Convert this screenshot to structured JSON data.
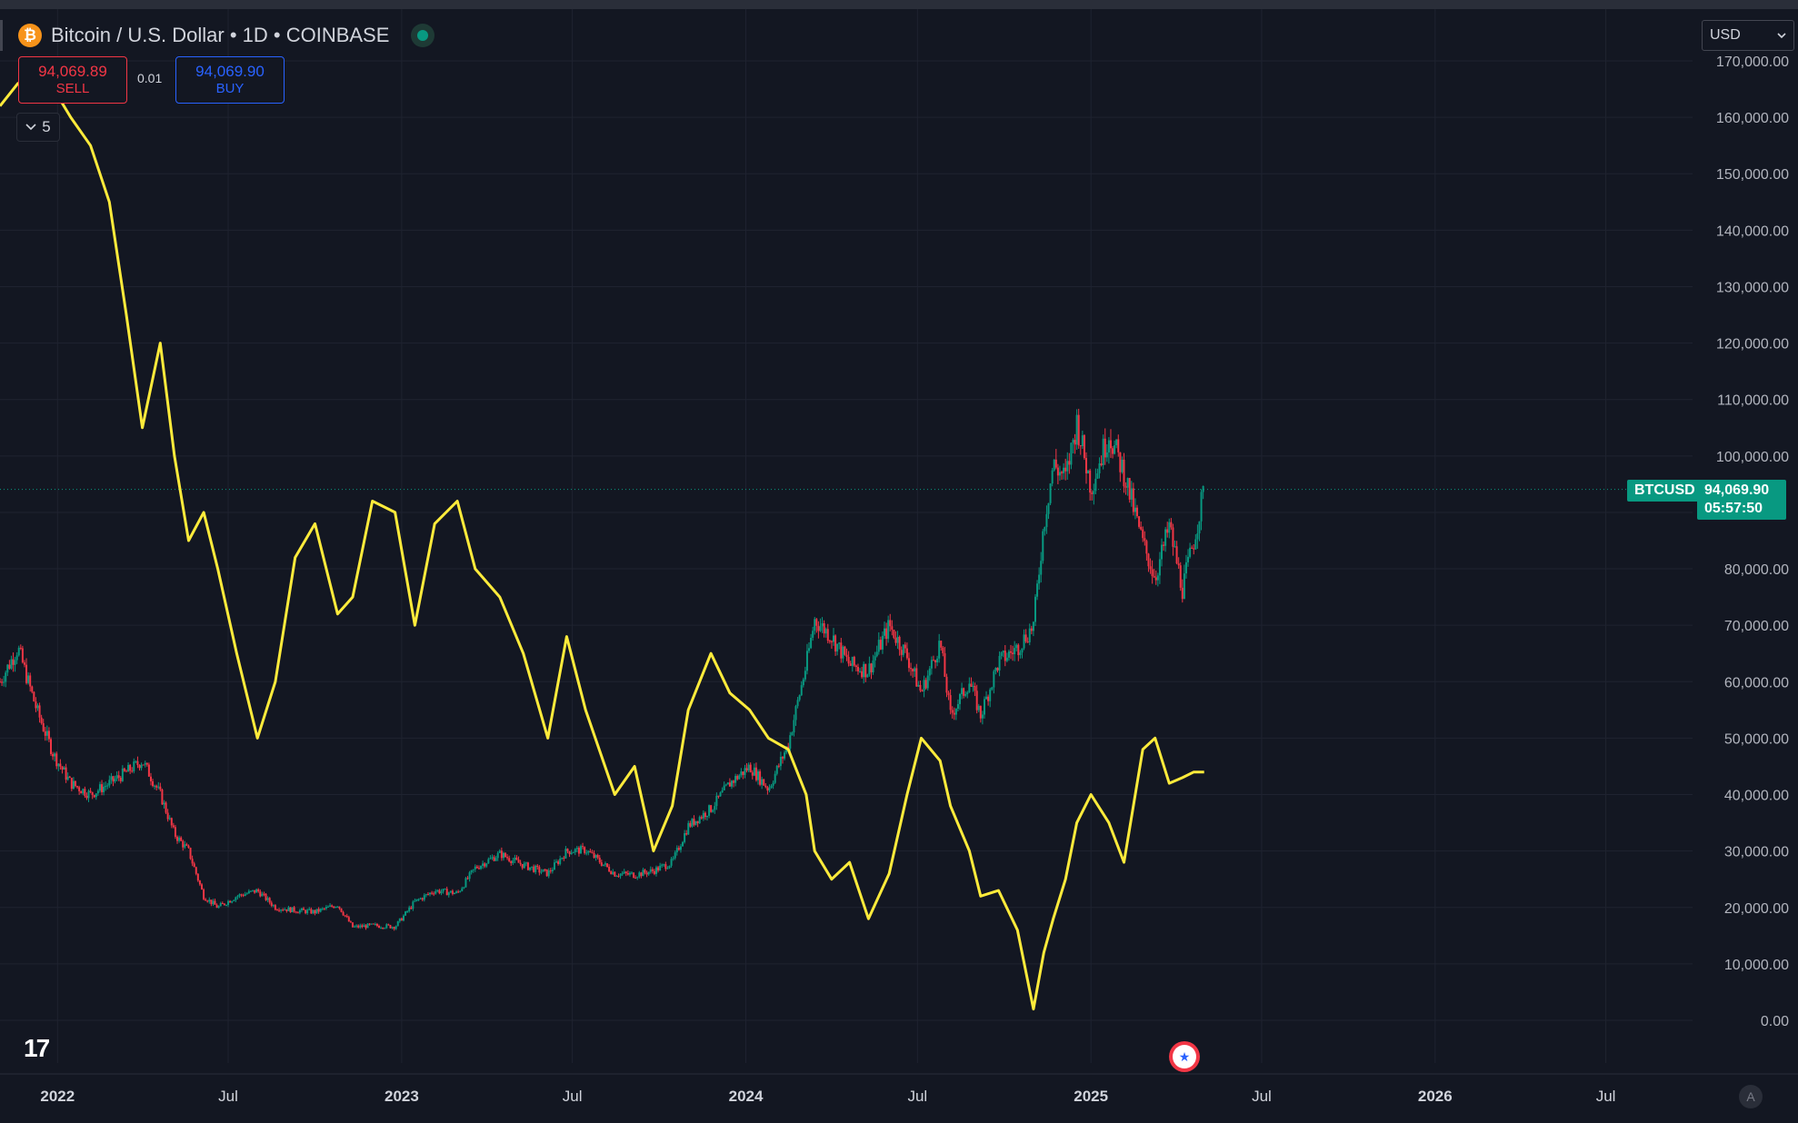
{
  "header": {
    "symbol_title": "Bitcoin / U.S. Dollar • 1D • COINBASE",
    "btc_glyph": "₿"
  },
  "trade": {
    "sell_price": "94,069.89",
    "sell_label": "SELL",
    "buy_price": "94,069.90",
    "buy_label": "BUY",
    "spread": "0.01"
  },
  "indicator_toggle": {
    "count": "5",
    "icon": "chevron-down-icon"
  },
  "currency_select": {
    "value": "USD",
    "icon": "chevron-down-icon"
  },
  "last_price": {
    "symbol": "BTCUSD",
    "price": "94,069.90",
    "countdown": "05:57:50"
  },
  "colors": {
    "background": "#131722",
    "up": "#089981",
    "down": "#f23645",
    "overlay": "#ffeb3b",
    "grid": "#1f2330"
  },
  "chart_data": {
    "type": "line",
    "ylim": [
      0,
      170000
    ],
    "y_ticks": [
      0,
      10000,
      20000,
      30000,
      40000,
      50000,
      60000,
      70000,
      80000,
      90000,
      100000,
      110000,
      120000,
      130000,
      140000,
      150000,
      160000,
      170000
    ],
    "y_tick_labels": [
      "0.00",
      "10,000.00",
      "20,000.00",
      "30,000.00",
      "40,000.00",
      "50,000.00",
      "60,000.00",
      "70,000.00",
      "80,000.00",
      "",
      "100,000.00",
      "110,000.00",
      "120,000.00",
      "130,000.00",
      "140,000.00",
      "150,000.00",
      "160,000.00",
      "170,000.00"
    ],
    "x_tick_labels": [
      "2022",
      "Jul",
      "2023",
      "Jul",
      "2024",
      "Jul",
      "2025",
      "Jul",
      "2026",
      "Jul"
    ],
    "x_tick_dates": [
      "2022-01-01",
      "2022-07-01",
      "2023-01-01",
      "2023-07-01",
      "2024-01-01",
      "2024-07-01",
      "2025-01-01",
      "2025-07-01",
      "2026-01-01",
      "2026-07-01"
    ],
    "xlim": [
      "2021-11-01",
      "2026-10-01"
    ],
    "grid": true,
    "legend": "none",
    "series": [
      {
        "kind": "candlestick",
        "x": [
          "2021-11-01",
          "2021-11-20",
          "2021-12-10",
          "2021-12-28",
          "2022-01-15",
          "2022-02-05",
          "2022-02-25",
          "2022-03-15",
          "2022-04-01",
          "2022-04-20",
          "2022-05-05",
          "2022-05-20",
          "2022-06-05",
          "2022-06-20",
          "2022-07-10",
          "2022-08-01",
          "2022-08-20",
          "2022-09-10",
          "2022-10-01",
          "2022-10-25",
          "2022-11-10",
          "2022-12-01",
          "2022-12-25",
          "2023-01-15",
          "2023-02-05",
          "2023-03-01",
          "2023-03-20",
          "2023-04-15",
          "2023-05-10",
          "2023-06-05",
          "2023-06-25",
          "2023-07-15",
          "2023-08-15",
          "2023-09-05",
          "2023-09-25",
          "2023-10-15",
          "2023-11-01",
          "2023-11-25",
          "2023-12-15",
          "2024-01-05",
          "2024-01-25",
          "2024-02-15",
          "2024-03-05",
          "2024-03-14",
          "2024-04-01",
          "2024-04-20",
          "2024-05-10",
          "2024-06-01",
          "2024-06-20",
          "2024-07-05",
          "2024-07-25",
          "2024-08-05",
          "2024-08-25",
          "2024-09-06",
          "2024-09-25",
          "2024-10-15",
          "2024-11-01",
          "2024-11-12",
          "2024-11-22",
          "2024-12-05",
          "2024-12-17",
          "2025-01-01",
          "2025-01-20",
          "2025-02-05",
          "2025-02-25",
          "2025-03-10",
          "2025-03-25",
          "2025-04-08",
          "2025-04-20",
          "2025-05-01"
        ],
        "y": [
          60000,
          66000,
          55000,
          47000,
          42000,
          40000,
          42000,
          44000,
          46000,
          40000,
          33000,
          30000,
          22000,
          20000,
          22000,
          23000,
          20000,
          19500,
          19200,
          20500,
          16500,
          16800,
          16600,
          21000,
          23000,
          22500,
          27000,
          29500,
          27500,
          26000,
          30000,
          30200,
          26000,
          25800,
          26500,
          28000,
          34500,
          37500,
          42000,
          45000,
          41000,
          49000,
          63000,
          71000,
          68000,
          63000,
          62000,
          70000,
          64500,
          58000,
          67000,
          54000,
          60000,
          54000,
          63500,
          66000,
          70000,
          88000,
          98500,
          96000,
          106000,
          94500,
          104000,
          97000,
          84500,
          78500,
          87500,
          76500,
          85000,
          94070
        ]
      },
      {
        "kind": "line",
        "name": "",
        "x": [
          "2021-11-01",
          "2021-11-20",
          "2021-12-10",
          "2021-12-28",
          "2022-01-15",
          "2022-02-05",
          "2022-02-25",
          "2022-03-15",
          "2022-04-01",
          "2022-04-20",
          "2022-05-05",
          "2022-05-20",
          "2022-06-05",
          "2022-06-20",
          "2022-07-10",
          "2022-08-01",
          "2022-08-20",
          "2022-09-10",
          "2022-10-01",
          "2022-10-25",
          "2022-11-10",
          "2022-12-01",
          "2022-12-25",
          "2023-01-15",
          "2023-02-05",
          "2023-03-01",
          "2023-03-20",
          "2023-04-15",
          "2023-05-10",
          "2023-06-05",
          "2023-06-25",
          "2023-07-15",
          "2023-08-15",
          "2023-09-05",
          "2023-09-25",
          "2023-10-15",
          "2023-11-01",
          "2023-11-25",
          "2023-12-15",
          "2024-01-05",
          "2024-01-25",
          "2024-02-15",
          "2024-03-05",
          "2024-03-14",
          "2024-04-01",
          "2024-04-20",
          "2024-05-10",
          "2024-06-01",
          "2024-06-20",
          "2024-07-05",
          "2024-07-25",
          "2024-08-05",
          "2024-08-25",
          "2024-09-06",
          "2024-09-25",
          "2024-10-15",
          "2024-11-01",
          "2024-11-12",
          "2024-11-22",
          "2024-12-05",
          "2024-12-17",
          "2025-01-01",
          "2025-01-20",
          "2025-02-05",
          "2025-02-25",
          "2025-03-10",
          "2025-03-25",
          "2025-04-08",
          "2025-04-20",
          "2025-05-01"
        ],
        "y": [
          162000,
          166000,
          163000,
          165000,
          160000,
          155000,
          145000,
          125000,
          105000,
          120000,
          100000,
          85000,
          90000,
          80000,
          65000,
          50000,
          60000,
          82000,
          88000,
          72000,
          75000,
          92000,
          90000,
          70000,
          88000,
          92000,
          80000,
          75000,
          65000,
          50000,
          68000,
          55000,
          40000,
          45000,
          30000,
          38000,
          55000,
          65000,
          58000,
          55000,
          50000,
          48000,
          40000,
          30000,
          25000,
          28000,
          18000,
          26000,
          40000,
          50000,
          46000,
          38000,
          30000,
          22000,
          23000,
          16000,
          2000,
          12000,
          18000,
          25000,
          35000,
          40000,
          35000,
          28000,
          48000,
          50000,
          42000,
          43000,
          44000,
          44000
        ]
      }
    ]
  }
}
